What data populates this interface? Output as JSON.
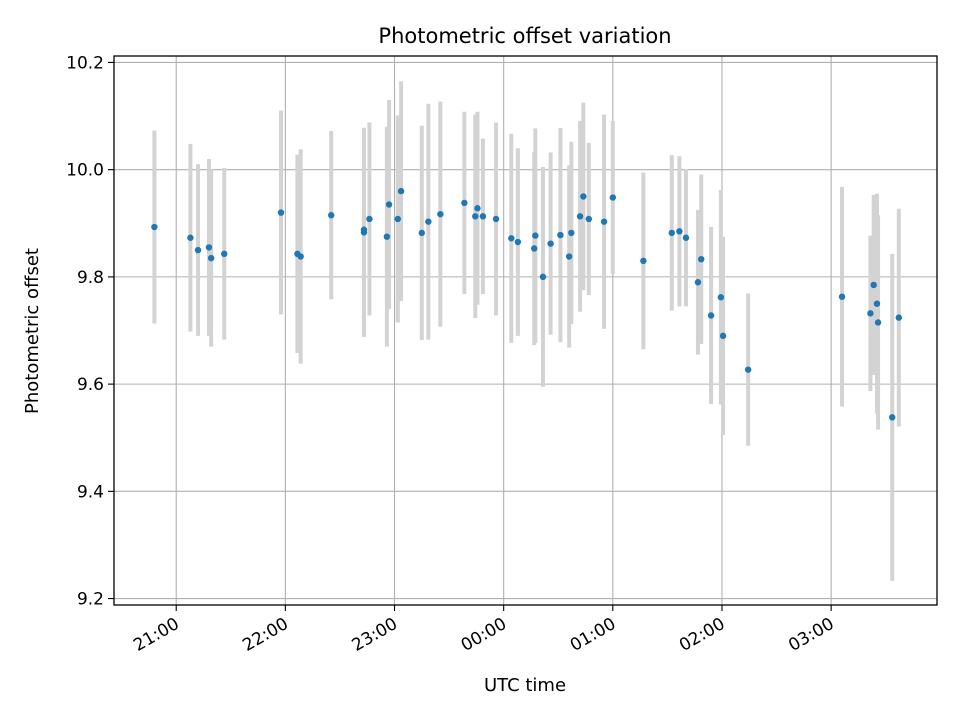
{
  "chart_data": {
    "type": "scatter",
    "title": "Photometric offset variation",
    "xlabel": "UTC time",
    "ylabel": "Photometric offset",
    "xlim_hours": [
      20.43,
      27.97
    ],
    "ylim": [
      9.188,
      10.212
    ],
    "x_ticks": [
      {
        "value": 21,
        "label": "21:00"
      },
      {
        "value": 22,
        "label": "22:00"
      },
      {
        "value": 23,
        "label": "23:00"
      },
      {
        "value": 24,
        "label": "00:00"
      },
      {
        "value": 25,
        "label": "01:00"
      },
      {
        "value": 26,
        "label": "02:00"
      },
      {
        "value": 27,
        "label": "03:00"
      }
    ],
    "y_ticks": [
      {
        "value": 9.2,
        "label": "9.2"
      },
      {
        "value": 9.4,
        "label": "9.4"
      },
      {
        "value": 9.6,
        "label": "9.6"
      },
      {
        "value": 9.8,
        "label": "9.8"
      },
      {
        "value": 10.0,
        "label": "10.0"
      },
      {
        "value": 10.2,
        "label": "10.2"
      }
    ],
    "grid": true,
    "colors": {
      "point": "#1f77b4",
      "errorbar": "#d3d3d3",
      "grid": "#b0b0b0"
    },
    "series": [
      {
        "x_hours": [
          20.8,
          21.13,
          21.2,
          21.3,
          21.32,
          21.44,
          21.96,
          22.11,
          22.14,
          22.42,
          22.72,
          22.72,
          22.77,
          22.93,
          22.95,
          23.03,
          23.06,
          23.25,
          23.31,
          23.42,
          23.64,
          23.74,
          23.76,
          23.81,
          23.93,
          24.07,
          24.13,
          24.28,
          24.29,
          24.36,
          24.43,
          24.52,
          24.6,
          24.62,
          24.7,
          24.73,
          24.78,
          24.92,
          25.0,
          25.28,
          25.54,
          25.61,
          25.67,
          25.78,
          25.81,
          25.9,
          25.99,
          26.01,
          26.24,
          27.1,
          27.36,
          27.39,
          27.42,
          27.43,
          27.56,
          27.62
        ],
        "y": [
          9.893,
          9.873,
          9.85,
          9.855,
          9.835,
          9.843,
          9.92,
          9.843,
          9.838,
          9.915,
          9.883,
          9.888,
          9.908,
          9.875,
          9.935,
          9.908,
          9.96,
          9.882,
          9.903,
          9.917,
          9.938,
          9.913,
          9.928,
          9.913,
          9.908,
          9.872,
          9.865,
          9.853,
          9.877,
          9.8,
          9.862,
          9.878,
          9.838,
          9.882,
          9.913,
          9.95,
          9.908,
          9.903,
          9.948,
          9.83,
          9.882,
          9.885,
          9.873,
          9.79,
          9.833,
          9.728,
          9.762,
          9.69,
          9.627,
          9.763,
          9.732,
          9.785,
          9.75,
          9.715,
          9.538,
          9.724
        ],
        "yerr": [
          0.18,
          0.175,
          0.16,
          0.165,
          0.165,
          0.16,
          0.19,
          0.185,
          0.2,
          0.157,
          0.195,
          0.19,
          0.18,
          0.205,
          0.195,
          0.193,
          0.205,
          0.2,
          0.22,
          0.21,
          0.17,
          0.19,
          0.18,
          0.145,
          0.18,
          0.195,
          0.175,
          0.18,
          0.2,
          0.205,
          0.17,
          0.2,
          0.17,
          0.17,
          0.178,
          0.175,
          0.142,
          0.2,
          0.143,
          0.165,
          0.145,
          0.14,
          0.128,
          0.135,
          0.158,
          0.165,
          0.2,
          0.185,
          0.142,
          0.205,
          0.145,
          0.168,
          0.205,
          0.2,
          0.305,
          0.203
        ]
      }
    ]
  }
}
